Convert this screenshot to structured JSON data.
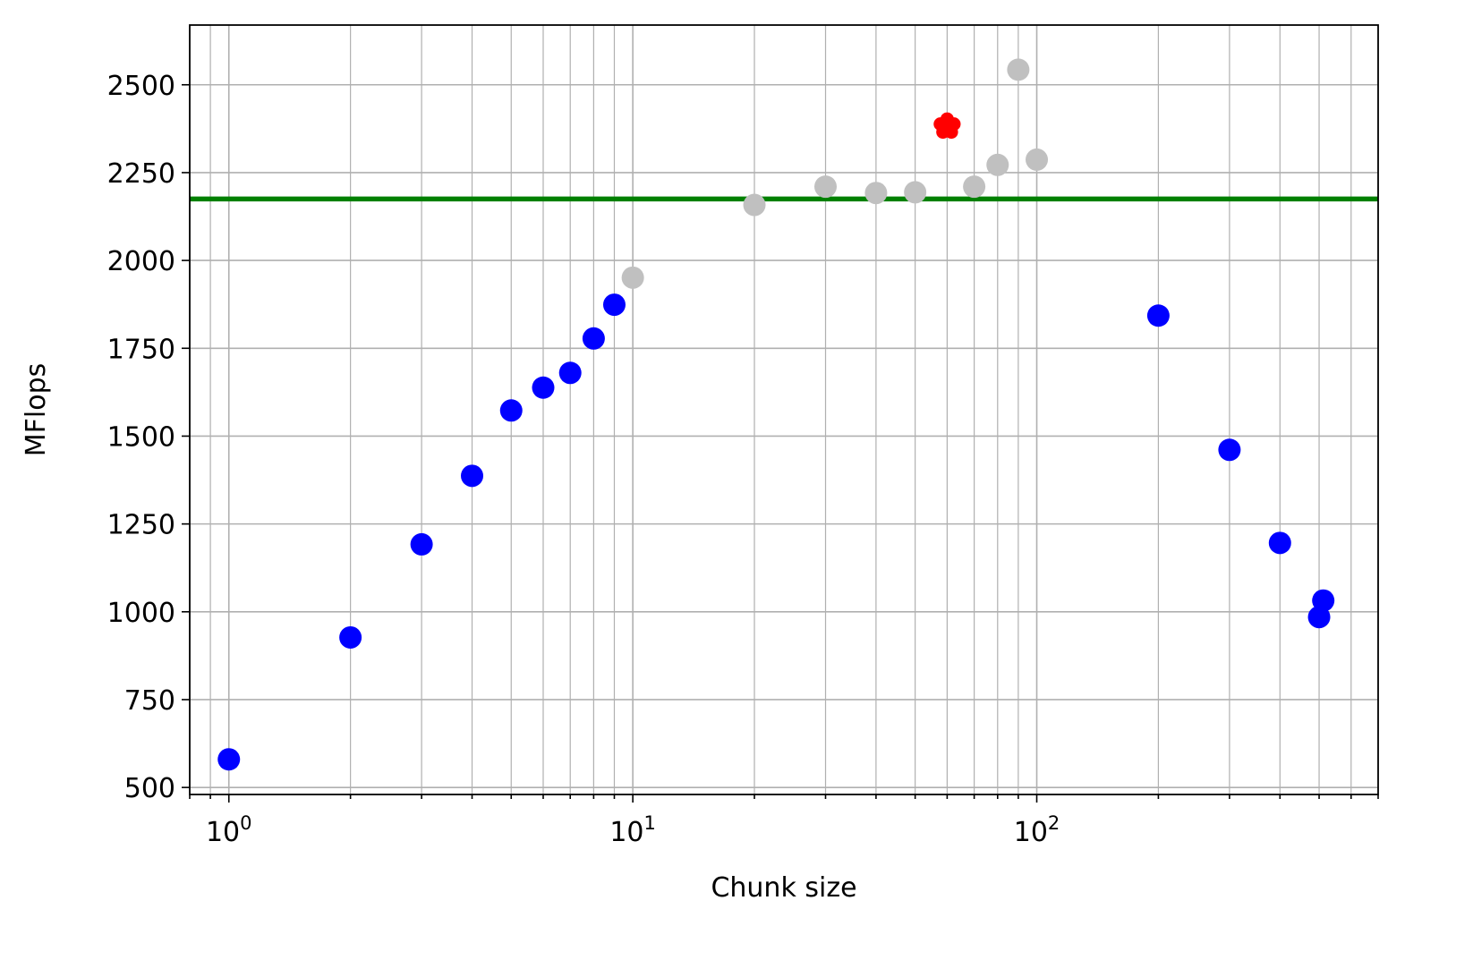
{
  "chart_data": {
    "type": "scatter",
    "title": "",
    "xlabel": "Chunk size",
    "ylabel": "MFlops",
    "xscale": "log",
    "xlim": [
      0.8,
      700
    ],
    "ylim": [
      480,
      2670
    ],
    "grid": "major and minor",
    "x_ticks": [
      {
        "value": 1,
        "base": "10",
        "exp": "0"
      },
      {
        "value": 10,
        "base": "10",
        "exp": "1"
      },
      {
        "value": 100,
        "base": "10",
        "exp": "2"
      }
    ],
    "y_ticks": [
      500,
      750,
      1000,
      1250,
      1500,
      1750,
      2000,
      2250,
      2500
    ],
    "reference_line": {
      "y": 2175,
      "color": "#008000"
    },
    "series": [
      {
        "color": "#0000ff",
        "marker": "circle",
        "points": [
          [
            1,
            580
          ],
          [
            2,
            927
          ],
          [
            3,
            1192
          ],
          [
            4,
            1387
          ],
          [
            5,
            1573
          ],
          [
            6,
            1638
          ],
          [
            7,
            1680
          ],
          [
            8,
            1778
          ],
          [
            9,
            1874
          ],
          [
            200,
            1843
          ],
          [
            300,
            1461
          ],
          [
            400,
            1196
          ],
          [
            500,
            985
          ],
          [
            512,
            1032
          ]
        ]
      },
      {
        "color": "#c0c0c0",
        "marker": "circle",
        "points": [
          [
            10,
            1951
          ],
          [
            20,
            2158
          ],
          [
            30,
            2210
          ],
          [
            40,
            2192
          ],
          [
            50,
            2194
          ],
          [
            70,
            2210
          ],
          [
            80,
            2272
          ],
          [
            90,
            2543
          ],
          [
            100,
            2287
          ]
        ]
      },
      {
        "color": "#ff0000",
        "marker": "flower",
        "points": [
          [
            60,
            2382
          ]
        ]
      }
    ]
  }
}
